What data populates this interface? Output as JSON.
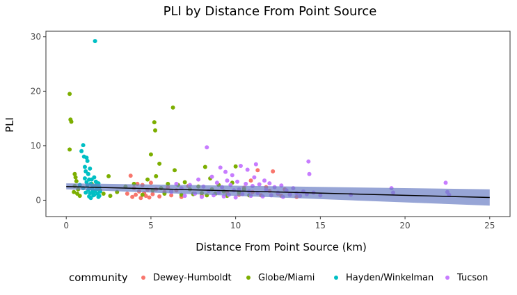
{
  "chart_data": {
    "type": "scatter",
    "title": "PLI by Distance From Point Source",
    "xlabel": "Distance From Point Source (km)",
    "ylabel": "PLI",
    "xlim": [
      -1.2,
      26.2
    ],
    "ylim": [
      -3,
      31
    ],
    "xticks": [
      0,
      5,
      10,
      15,
      20,
      25
    ],
    "yticks": [
      0,
      10,
      20,
      30
    ],
    "grid": false,
    "legend": {
      "title": "community",
      "position": "bottom"
    },
    "series": [
      {
        "name": "Dewey-Humboldt",
        "color": "#F8766D",
        "points": [
          [
            3.6,
            1.2
          ],
          [
            3.8,
            4.5
          ],
          [
            3.9,
            0.6
          ],
          [
            4.0,
            2.2
          ],
          [
            4.1,
            1.0
          ],
          [
            4.2,
            3.0
          ],
          [
            4.3,
            1.6
          ],
          [
            4.4,
            0.4
          ],
          [
            4.5,
            2.8
          ],
          [
            4.6,
            1.3
          ],
          [
            4.7,
            0.8
          ],
          [
            4.8,
            1.9
          ],
          [
            4.9,
            0.5
          ],
          [
            5.0,
            3.2
          ],
          [
            5.1,
            1.1
          ],
          [
            5.3,
            2.0
          ],
          [
            5.5,
            0.7
          ],
          [
            5.8,
            1.5
          ],
          [
            6.0,
            2.4
          ],
          [
            6.2,
            0.9
          ],
          [
            6.5,
            1.8
          ],
          [
            6.8,
            0.6
          ],
          [
            7.2,
            2.6
          ],
          [
            7.5,
            1.2
          ],
          [
            8.0,
            0.8
          ],
          [
            9.5,
            1.4
          ],
          [
            10.2,
            1.0
          ],
          [
            10.5,
            2.3
          ],
          [
            10.9,
            3.6
          ],
          [
            11.0,
            1.5
          ],
          [
            11.3,
            5.5
          ],
          [
            11.5,
            0.9
          ],
          [
            11.8,
            2.4
          ],
          [
            12.0,
            1.7
          ],
          [
            12.2,
            5.3
          ],
          [
            12.5,
            1.2
          ],
          [
            12.7,
            0.8
          ],
          [
            12.9,
            2.0
          ],
          [
            13.2,
            1.1
          ],
          [
            13.6,
            0.6
          ]
        ]
      },
      {
        "name": "Globe/Miami",
        "color": "#7CAE00",
        "points": [
          [
            0.2,
            19.5
          ],
          [
            0.25,
            14.8
          ],
          [
            0.3,
            14.4
          ],
          [
            0.2,
            9.3
          ],
          [
            0.5,
            4.8
          ],
          [
            0.55,
            4.2
          ],
          [
            0.6,
            3.5
          ],
          [
            0.5,
            2.6
          ],
          [
            0.7,
            2.0
          ],
          [
            0.45,
            1.5
          ],
          [
            0.65,
            1.2
          ],
          [
            0.8,
            0.8
          ],
          [
            1.5,
            3.0
          ],
          [
            1.8,
            2.5
          ],
          [
            2.0,
            1.8
          ],
          [
            2.2,
            1.2
          ],
          [
            2.5,
            4.4
          ],
          [
            2.6,
            0.8
          ],
          [
            3.0,
            1.5
          ],
          [
            3.5,
            2.5
          ],
          [
            4.0,
            3.0
          ],
          [
            4.5,
            1.0
          ],
          [
            4.8,
            3.8
          ],
          [
            5.0,
            8.4
          ],
          [
            5.1,
            1.8
          ],
          [
            5.2,
            14.3
          ],
          [
            5.25,
            12.8
          ],
          [
            5.3,
            4.4
          ],
          [
            5.5,
            6.7
          ],
          [
            5.6,
            2.2
          ],
          [
            5.8,
            1.2
          ],
          [
            6.0,
            3.0
          ],
          [
            6.2,
            1.6
          ],
          [
            6.3,
            17.0
          ],
          [
            6.4,
            5.5
          ],
          [
            6.6,
            2.8
          ],
          [
            6.8,
            1.0
          ],
          [
            7.0,
            3.3
          ],
          [
            7.3,
            2.0
          ],
          [
            7.5,
            1.1
          ],
          [
            7.8,
            2.5
          ],
          [
            8.0,
            1.3
          ],
          [
            8.2,
            6.1
          ],
          [
            8.3,
            0.9
          ],
          [
            8.5,
            4.0
          ],
          [
            8.6,
            2.0
          ],
          [
            8.8,
            1.2
          ],
          [
            9.0,
            2.8
          ],
          [
            9.3,
            1.6
          ],
          [
            9.5,
            0.8
          ],
          [
            9.8,
            3.2
          ],
          [
            10.0,
            6.2
          ],
          [
            10.2,
            1.4
          ],
          [
            10.5,
            2.0
          ],
          [
            10.8,
            0.9
          ]
        ]
      },
      {
        "name": "Hayden/Winkelman",
        "color": "#00BFC4",
        "points": [
          [
            0.8,
            2.8
          ],
          [
            0.9,
            9.0
          ],
          [
            1.0,
            10.1
          ],
          [
            1.05,
            8.0
          ],
          [
            1.1,
            6.1
          ],
          [
            1.15,
            5.3
          ],
          [
            1.2,
            7.8
          ],
          [
            1.25,
            7.2
          ],
          [
            1.3,
            4.8
          ],
          [
            1.35,
            3.8
          ],
          [
            1.4,
            5.8
          ],
          [
            1.45,
            3.0
          ],
          [
            1.5,
            2.2
          ],
          [
            1.55,
            1.5
          ],
          [
            1.6,
            2.6
          ],
          [
            1.65,
            1.0
          ],
          [
            1.7,
            29.2
          ],
          [
            1.75,
            3.4
          ],
          [
            1.8,
            2.0
          ],
          [
            1.85,
            1.2
          ],
          [
            1.9,
            0.6
          ],
          [
            1.95,
            2.4
          ],
          [
            2.0,
            1.6
          ],
          [
            1.1,
            4.0
          ],
          [
            1.2,
            3.3
          ],
          [
            1.25,
            2.8
          ],
          [
            1.3,
            1.9
          ],
          [
            1.4,
            1.3
          ],
          [
            1.45,
            0.4
          ],
          [
            1.5,
            3.8
          ],
          [
            1.6,
            0.9
          ],
          [
            1.7,
            1.7
          ],
          [
            1.8,
            2.9
          ],
          [
            1.95,
            0.8
          ],
          [
            1.0,
            2.2
          ],
          [
            1.15,
            1.4
          ],
          [
            1.35,
            0.7
          ],
          [
            1.55,
            2.0
          ],
          [
            1.65,
            4.2
          ],
          [
            1.9,
            3.1
          ]
        ]
      },
      {
        "name": "Tucson",
        "color": "#C77CFF",
        "points": [
          [
            6.2,
            1.5
          ],
          [
            6.5,
            3.0
          ],
          [
            6.8,
            2.2
          ],
          [
            7.0,
            0.8
          ],
          [
            7.3,
            2.8
          ],
          [
            7.6,
            1.2
          ],
          [
            7.8,
            3.8
          ],
          [
            8.0,
            0.6
          ],
          [
            8.1,
            2.5
          ],
          [
            8.3,
            9.7
          ],
          [
            8.4,
            1.7
          ],
          [
            8.6,
            4.3
          ],
          [
            8.7,
            0.9
          ],
          [
            8.9,
            3.2
          ],
          [
            9.0,
            1.4
          ],
          [
            9.1,
            6.0
          ],
          [
            9.2,
            2.4
          ],
          [
            9.3,
            0.7
          ],
          [
            9.4,
            5.2
          ],
          [
            9.5,
            3.6
          ],
          [
            9.6,
            1.0
          ],
          [
            9.7,
            2.8
          ],
          [
            9.8,
            4.6
          ],
          [
            9.9,
            1.8
          ],
          [
            10.0,
            0.5
          ],
          [
            10.1,
            3.4
          ],
          [
            10.2,
            2.0
          ],
          [
            10.3,
            6.3
          ],
          [
            10.4,
            1.1
          ],
          [
            10.6,
            3.0
          ],
          [
            10.7,
            5.6
          ],
          [
            10.8,
            1.6
          ],
          [
            10.9,
            0.8
          ],
          [
            11.0,
            2.6
          ],
          [
            11.1,
            4.2
          ],
          [
            11.2,
            6.6
          ],
          [
            11.3,
            1.3
          ],
          [
            11.4,
            2.9
          ],
          [
            11.6,
            0.7
          ],
          [
            11.7,
            3.6
          ],
          [
            11.8,
            1.9
          ],
          [
            12.0,
            3.1
          ],
          [
            12.1,
            0.9
          ],
          [
            12.3,
            2.4
          ],
          [
            12.5,
            1.4
          ],
          [
            12.7,
            2.7
          ],
          [
            12.8,
            0.6
          ],
          [
            13.0,
            1.8
          ],
          [
            13.2,
            1.0
          ],
          [
            13.4,
            2.2
          ],
          [
            13.6,
            1.3
          ],
          [
            13.8,
            0.8
          ],
          [
            14.0,
            1.6
          ],
          [
            14.2,
            1.1
          ],
          [
            14.3,
            7.1
          ],
          [
            14.35,
            4.8
          ],
          [
            14.6,
            1.4
          ],
          [
            15.0,
            0.9
          ],
          [
            16.8,
            1.0
          ],
          [
            19.2,
            2.2
          ],
          [
            19.3,
            1.4
          ],
          [
            22.4,
            3.2
          ],
          [
            22.5,
            1.5
          ],
          [
            22.6,
            1.0
          ]
        ]
      }
    ],
    "fit_line": {
      "color": "#000000",
      "band_color": "#6B7FC4",
      "x": [
        0,
        25
      ],
      "y": [
        2.5,
        0.5
      ],
      "lower": [
        2.0,
        -1.0
      ],
      "upper": [
        3.1,
        2.0
      ]
    }
  }
}
